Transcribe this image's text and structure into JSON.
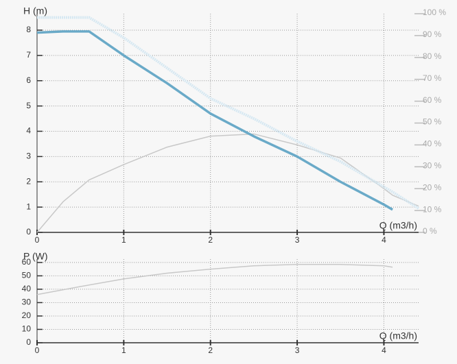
{
  "chart_data": [
    {
      "type": "line",
      "ylabel": "H (m)",
      "xlabel": "Q (m3/h)",
      "x": [
        0,
        0.3,
        0.6,
        1,
        1.5,
        2,
        2.5,
        3,
        3.5,
        4,
        4.1,
        4.4
      ],
      "xlim": [
        0,
        4.4
      ],
      "xticks": [
        0,
        1,
        2,
        3,
        4
      ],
      "ylim": [
        0,
        8.65
      ],
      "yticks": [
        0,
        1,
        2,
        3,
        4,
        5,
        6,
        7,
        8
      ],
      "y2lim": [
        0,
        100
      ],
      "y2ticks": [
        {
          "value": 0,
          "label": "0 %"
        },
        {
          "value": 10,
          "label": "10 %"
        },
        {
          "value": 20,
          "label": "20 %"
        },
        {
          "value": 30,
          "label": "30 %"
        },
        {
          "value": 40,
          "label": "40 %"
        },
        {
          "value": 50,
          "label": "50 %"
        },
        {
          "value": 60,
          "label": "60 %"
        },
        {
          "value": 70,
          "label": "70 %"
        },
        {
          "value": 80,
          "label": "80 %"
        },
        {
          "value": 90,
          "label": "90 %"
        },
        {
          "value": 100,
          "label": "100 %"
        }
      ],
      "grid": true,
      "series": [
        {
          "color": "#c8c8c8",
          "axis": "y2",
          "values": [
            0,
            14,
            24,
            31,
            39,
            44,
            45,
            40,
            34,
            20,
            17,
            12
          ]
        },
        {
          "color": "#d6e8f2",
          "dashed": true,
          "values": [
            8.5,
            8.5,
            8.5,
            7.7,
            6.5,
            5.3,
            4.5,
            3.6,
            2.8,
            1.8,
            1.6,
            0.95
          ]
        },
        {
          "color": "#6aaac8",
          "width": 3.5,
          "values": [
            7.9,
            7.95,
            7.95,
            7.0,
            5.9,
            4.7,
            3.8,
            3.0,
            2.0,
            1.1,
            0.9,
            null
          ]
        }
      ]
    },
    {
      "type": "line",
      "ylabel": "P (W)",
      "xlabel": "Q (m3/h)",
      "x": [
        0,
        0.5,
        1,
        1.5,
        2,
        2.5,
        3,
        3.5,
        4,
        4.1
      ],
      "xlim": [
        0,
        4.4
      ],
      "xticks": [
        0,
        1,
        2,
        3,
        4
      ],
      "ylim": [
        0,
        62.5
      ],
      "yticks": [
        0,
        10,
        20,
        30,
        40,
        50,
        60
      ],
      "grid": true,
      "series": [
        {
          "color": "#c8c8c8",
          "values": [
            36,
            42,
            47.7,
            52,
            55,
            57.5,
            58.5,
            58.5,
            57.5,
            56.5
          ]
        }
      ]
    }
  ]
}
